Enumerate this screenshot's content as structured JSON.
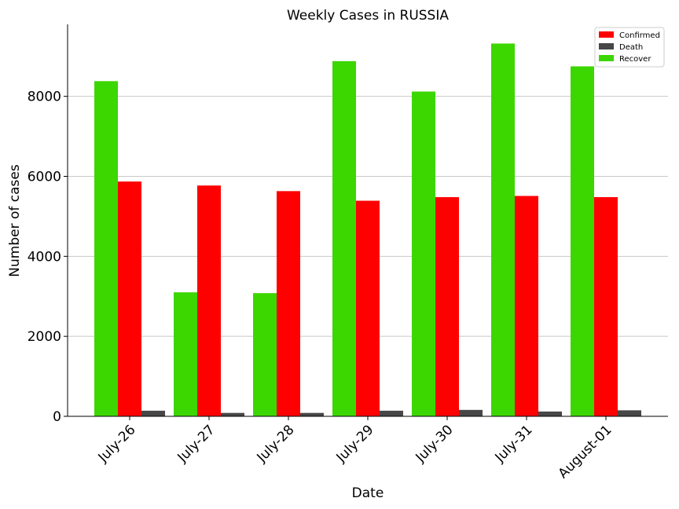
{
  "chart_data": {
    "type": "bar",
    "title": "Weekly Cases in RUSSIA",
    "xlabel": "Date",
    "ylabel": "Number of cases",
    "categories": [
      "July-26",
      "July-27",
      "July-28",
      "July-29",
      "July-30",
      "July-31",
      "August-01"
    ],
    "series": [
      {
        "name": "Recover",
        "color": "#3cd600",
        "values": [
          8380,
          3100,
          3080,
          8880,
          8120,
          9320,
          8750
        ]
      },
      {
        "name": "Confirmed",
        "color": "#ff0000",
        "values": [
          5870,
          5770,
          5630,
          5390,
          5480,
          5510,
          5480
        ]
      },
      {
        "name": "Death",
        "color": "#474747",
        "values": [
          140,
          85,
          85,
          140,
          160,
          120,
          150
        ]
      }
    ],
    "legend_order": [
      "Confirmed",
      "Death",
      "Recover"
    ],
    "legend_position": "top-right",
    "ylim": [
      0,
      9800
    ],
    "yticks": [
      0,
      2000,
      4000,
      6000,
      8000
    ],
    "grid": "y-major"
  }
}
